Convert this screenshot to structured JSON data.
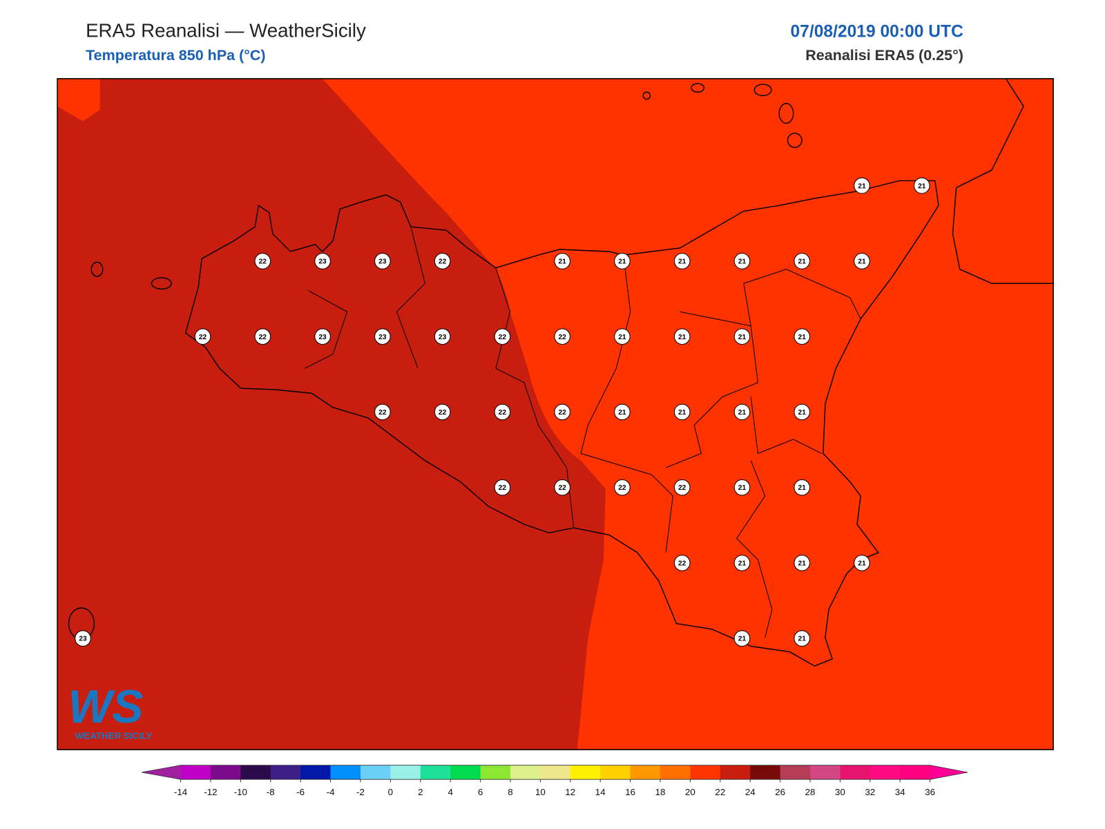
{
  "header": {
    "title": "ERA5 Reanalisi — WeatherSicily",
    "subtitle": "Temperatura 850 hPa (°C)",
    "date": "07/08/2019 00:00 UTC",
    "source": "Reanalisi ERA5 (0.25°)"
  },
  "map": {
    "field_colors": [
      "#c81e0f",
      "#ff3300"
    ]
  },
  "grid": {
    "rows": [
      [
        null,
        null,
        null,
        null,
        null,
        null,
        null,
        null,
        null,
        null,
        null,
        null,
        null,
        21,
        21
      ],
      [
        null,
        null,
        null,
        22,
        23,
        23,
        22,
        null,
        21,
        21,
        21,
        21,
        21,
        21,
        null
      ],
      [
        null,
        null,
        22,
        22,
        23,
        23,
        23,
        22,
        22,
        21,
        21,
        21,
        21,
        null,
        null
      ],
      [
        null,
        null,
        null,
        null,
        null,
        22,
        22,
        22,
        22,
        21,
        21,
        21,
        21,
        null,
        null
      ],
      [
        null,
        null,
        null,
        null,
        null,
        null,
        null,
        22,
        22,
        22,
        22,
        21,
        21,
        null,
        null
      ],
      [
        null,
        null,
        null,
        null,
        null,
        null,
        null,
        null,
        null,
        null,
        22,
        21,
        21,
        21,
        null
      ],
      [
        23,
        null,
        null,
        null,
        null,
        null,
        null,
        null,
        null,
        null,
        null,
        21,
        21,
        null,
        null
      ]
    ]
  },
  "colorbar": {
    "ticks": [
      -14,
      -12,
      -10,
      -8,
      -6,
      -4,
      -2,
      0,
      2,
      4,
      6,
      8,
      10,
      12,
      14,
      16,
      18,
      20,
      22,
      24,
      26,
      28,
      30,
      32,
      34,
      36
    ],
    "colors": [
      "#c000c8",
      "#7b0a8c",
      "#2d0a4a",
      "#3c2088",
      "#0018a8",
      "#0090ff",
      "#6ccff5",
      "#98f0e6",
      "#1ee09a",
      "#00dc50",
      "#8ce632",
      "#dcf08c",
      "#f0e68c",
      "#fff000",
      "#ffd000",
      "#ff9800",
      "#ff7000",
      "#ff3500",
      "#c81e0f",
      "#780a0a",
      "#b43c55",
      "#d24682",
      "#e6146e",
      "#ff0a82",
      "#ff0080"
    ],
    "under_color": "#a020a0",
    "over_color": "#ff0096"
  },
  "logo": {
    "mark": "WS",
    "caption": "WEATHER SICILY"
  }
}
